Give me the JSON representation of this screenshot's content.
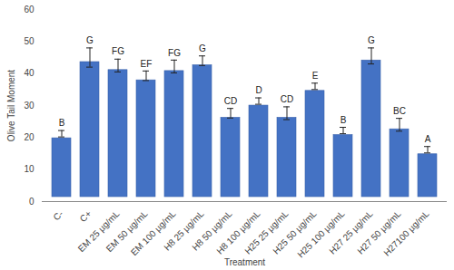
{
  "chart_data": {
    "type": "bar",
    "x_label": "Treatment",
    "y_label": "Olive Tail Moment",
    "categories": [
      "C-",
      "C+",
      "EM 25 µg/mL",
      "EM 50 µg/mL",
      "EM 100 µg/mL",
      "H8 25 µg/mL",
      "H8 50 µg/mL",
      "H8 100 µg/mL",
      "H25 25 µg/mL",
      "H25 50 µg/mL",
      "H25 100 µg/mL",
      "H27 25 µg/mL",
      "H27 50 µg/mL",
      "H27100 µg/mL"
    ],
    "values": [
      21.2,
      45,
      42.5,
      39.3,
      42.2,
      44,
      27.6,
      31.4,
      27.6,
      36,
      22.2,
      45.5,
      24,
      16.2
    ],
    "errors": [
      1,
      3,
      2,
      1.5,
      2,
      1.5,
      1.5,
      1,
      2,
      1,
      1,
      2.5,
      2,
      1
    ],
    "letters": [
      "B",
      "G",
      "FG",
      "EF",
      "FG",
      "G",
      "CD",
      "D",
      "CD",
      "E",
      "B",
      "G",
      "BC",
      "A"
    ],
    "color": "#4472c4",
    "ylim": [
      0,
      60
    ],
    "yticks": [
      0,
      10,
      20,
      30,
      40,
      50,
      60
    ],
    "grid": false
  }
}
